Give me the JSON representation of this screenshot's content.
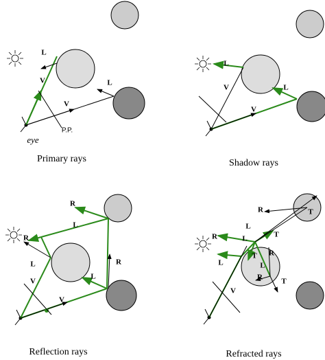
{
  "panels": [
    {
      "caption": "Primary rays",
      "labels": [
        "L",
        "V",
        "L",
        "V",
        "P.P.",
        "eye"
      ]
    },
    {
      "caption": "Shadow rays",
      "labels": [
        "L",
        "V",
        "L",
        "V"
      ]
    },
    {
      "caption": "Reflection rays",
      "labels": [
        "R",
        "L",
        "R",
        "L",
        "V",
        "L",
        "R",
        "V"
      ]
    },
    {
      "caption": "Refracted rays",
      "labels": [
        "R",
        "T",
        "L",
        "T",
        "R",
        "L",
        "T",
        "R",
        "L",
        "R",
        "T",
        "L",
        "V"
      ]
    }
  ]
}
